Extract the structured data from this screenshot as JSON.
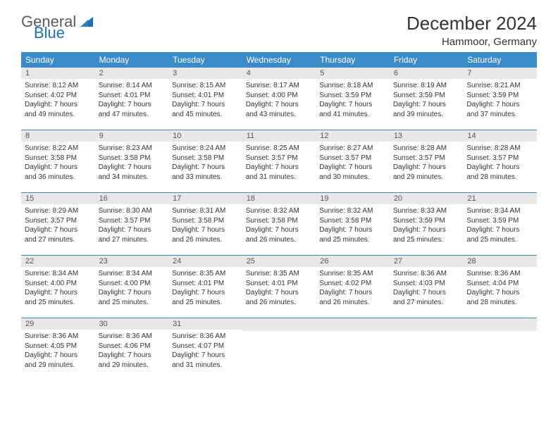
{
  "logo": {
    "word1": "General",
    "word2": "Blue"
  },
  "title": "December 2024",
  "location": "Hammoor, Germany",
  "colors": {
    "header_bg": "#3b8bc9",
    "header_text": "#ffffff",
    "daynum_bg": "#e8e8e8",
    "text": "#333333",
    "rule": "#3b8bc9"
  },
  "weekdays": [
    "Sunday",
    "Monday",
    "Tuesday",
    "Wednesday",
    "Thursday",
    "Friday",
    "Saturday"
  ],
  "weeks": [
    [
      {
        "n": "1",
        "sr": "Sunrise: 8:12 AM",
        "ss": "Sunset: 4:02 PM",
        "d1": "Daylight: 7 hours",
        "d2": "and 49 minutes."
      },
      {
        "n": "2",
        "sr": "Sunrise: 8:14 AM",
        "ss": "Sunset: 4:01 PM",
        "d1": "Daylight: 7 hours",
        "d2": "and 47 minutes."
      },
      {
        "n": "3",
        "sr": "Sunrise: 8:15 AM",
        "ss": "Sunset: 4:01 PM",
        "d1": "Daylight: 7 hours",
        "d2": "and 45 minutes."
      },
      {
        "n": "4",
        "sr": "Sunrise: 8:17 AM",
        "ss": "Sunset: 4:00 PM",
        "d1": "Daylight: 7 hours",
        "d2": "and 43 minutes."
      },
      {
        "n": "5",
        "sr": "Sunrise: 8:18 AM",
        "ss": "Sunset: 3:59 PM",
        "d1": "Daylight: 7 hours",
        "d2": "and 41 minutes."
      },
      {
        "n": "6",
        "sr": "Sunrise: 8:19 AM",
        "ss": "Sunset: 3:59 PM",
        "d1": "Daylight: 7 hours",
        "d2": "and 39 minutes."
      },
      {
        "n": "7",
        "sr": "Sunrise: 8:21 AM",
        "ss": "Sunset: 3:59 PM",
        "d1": "Daylight: 7 hours",
        "d2": "and 37 minutes."
      }
    ],
    [
      {
        "n": "8",
        "sr": "Sunrise: 8:22 AM",
        "ss": "Sunset: 3:58 PM",
        "d1": "Daylight: 7 hours",
        "d2": "and 36 minutes."
      },
      {
        "n": "9",
        "sr": "Sunrise: 8:23 AM",
        "ss": "Sunset: 3:58 PM",
        "d1": "Daylight: 7 hours",
        "d2": "and 34 minutes."
      },
      {
        "n": "10",
        "sr": "Sunrise: 8:24 AM",
        "ss": "Sunset: 3:58 PM",
        "d1": "Daylight: 7 hours",
        "d2": "and 33 minutes."
      },
      {
        "n": "11",
        "sr": "Sunrise: 8:25 AM",
        "ss": "Sunset: 3:57 PM",
        "d1": "Daylight: 7 hours",
        "d2": "and 31 minutes."
      },
      {
        "n": "12",
        "sr": "Sunrise: 8:27 AM",
        "ss": "Sunset: 3:57 PM",
        "d1": "Daylight: 7 hours",
        "d2": "and 30 minutes."
      },
      {
        "n": "13",
        "sr": "Sunrise: 8:28 AM",
        "ss": "Sunset: 3:57 PM",
        "d1": "Daylight: 7 hours",
        "d2": "and 29 minutes."
      },
      {
        "n": "14",
        "sr": "Sunrise: 8:28 AM",
        "ss": "Sunset: 3:57 PM",
        "d1": "Daylight: 7 hours",
        "d2": "and 28 minutes."
      }
    ],
    [
      {
        "n": "15",
        "sr": "Sunrise: 8:29 AM",
        "ss": "Sunset: 3:57 PM",
        "d1": "Daylight: 7 hours",
        "d2": "and 27 minutes."
      },
      {
        "n": "16",
        "sr": "Sunrise: 8:30 AM",
        "ss": "Sunset: 3:57 PM",
        "d1": "Daylight: 7 hours",
        "d2": "and 27 minutes."
      },
      {
        "n": "17",
        "sr": "Sunrise: 8:31 AM",
        "ss": "Sunset: 3:58 PM",
        "d1": "Daylight: 7 hours",
        "d2": "and 26 minutes."
      },
      {
        "n": "18",
        "sr": "Sunrise: 8:32 AM",
        "ss": "Sunset: 3:58 PM",
        "d1": "Daylight: 7 hours",
        "d2": "and 26 minutes."
      },
      {
        "n": "19",
        "sr": "Sunrise: 8:32 AM",
        "ss": "Sunset: 3:58 PM",
        "d1": "Daylight: 7 hours",
        "d2": "and 25 minutes."
      },
      {
        "n": "20",
        "sr": "Sunrise: 8:33 AM",
        "ss": "Sunset: 3:59 PM",
        "d1": "Daylight: 7 hours",
        "d2": "and 25 minutes."
      },
      {
        "n": "21",
        "sr": "Sunrise: 8:34 AM",
        "ss": "Sunset: 3:59 PM",
        "d1": "Daylight: 7 hours",
        "d2": "and 25 minutes."
      }
    ],
    [
      {
        "n": "22",
        "sr": "Sunrise: 8:34 AM",
        "ss": "Sunset: 4:00 PM",
        "d1": "Daylight: 7 hours",
        "d2": "and 25 minutes."
      },
      {
        "n": "23",
        "sr": "Sunrise: 8:34 AM",
        "ss": "Sunset: 4:00 PM",
        "d1": "Daylight: 7 hours",
        "d2": "and 25 minutes."
      },
      {
        "n": "24",
        "sr": "Sunrise: 8:35 AM",
        "ss": "Sunset: 4:01 PM",
        "d1": "Daylight: 7 hours",
        "d2": "and 25 minutes."
      },
      {
        "n": "25",
        "sr": "Sunrise: 8:35 AM",
        "ss": "Sunset: 4:01 PM",
        "d1": "Daylight: 7 hours",
        "d2": "and 26 minutes."
      },
      {
        "n": "26",
        "sr": "Sunrise: 8:35 AM",
        "ss": "Sunset: 4:02 PM",
        "d1": "Daylight: 7 hours",
        "d2": "and 26 minutes."
      },
      {
        "n": "27",
        "sr": "Sunrise: 8:36 AM",
        "ss": "Sunset: 4:03 PM",
        "d1": "Daylight: 7 hours",
        "d2": "and 27 minutes."
      },
      {
        "n": "28",
        "sr": "Sunrise: 8:36 AM",
        "ss": "Sunset: 4:04 PM",
        "d1": "Daylight: 7 hours",
        "d2": "and 28 minutes."
      }
    ],
    [
      {
        "n": "29",
        "sr": "Sunrise: 8:36 AM",
        "ss": "Sunset: 4:05 PM",
        "d1": "Daylight: 7 hours",
        "d2": "and 29 minutes."
      },
      {
        "n": "30",
        "sr": "Sunrise: 8:36 AM",
        "ss": "Sunset: 4:06 PM",
        "d1": "Daylight: 7 hours",
        "d2": "and 29 minutes."
      },
      {
        "n": "31",
        "sr": "Sunrise: 8:36 AM",
        "ss": "Sunset: 4:07 PM",
        "d1": "Daylight: 7 hours",
        "d2": "and 31 minutes."
      },
      {
        "empty": true
      },
      {
        "empty": true
      },
      {
        "empty": true
      },
      {
        "empty": true
      }
    ]
  ]
}
